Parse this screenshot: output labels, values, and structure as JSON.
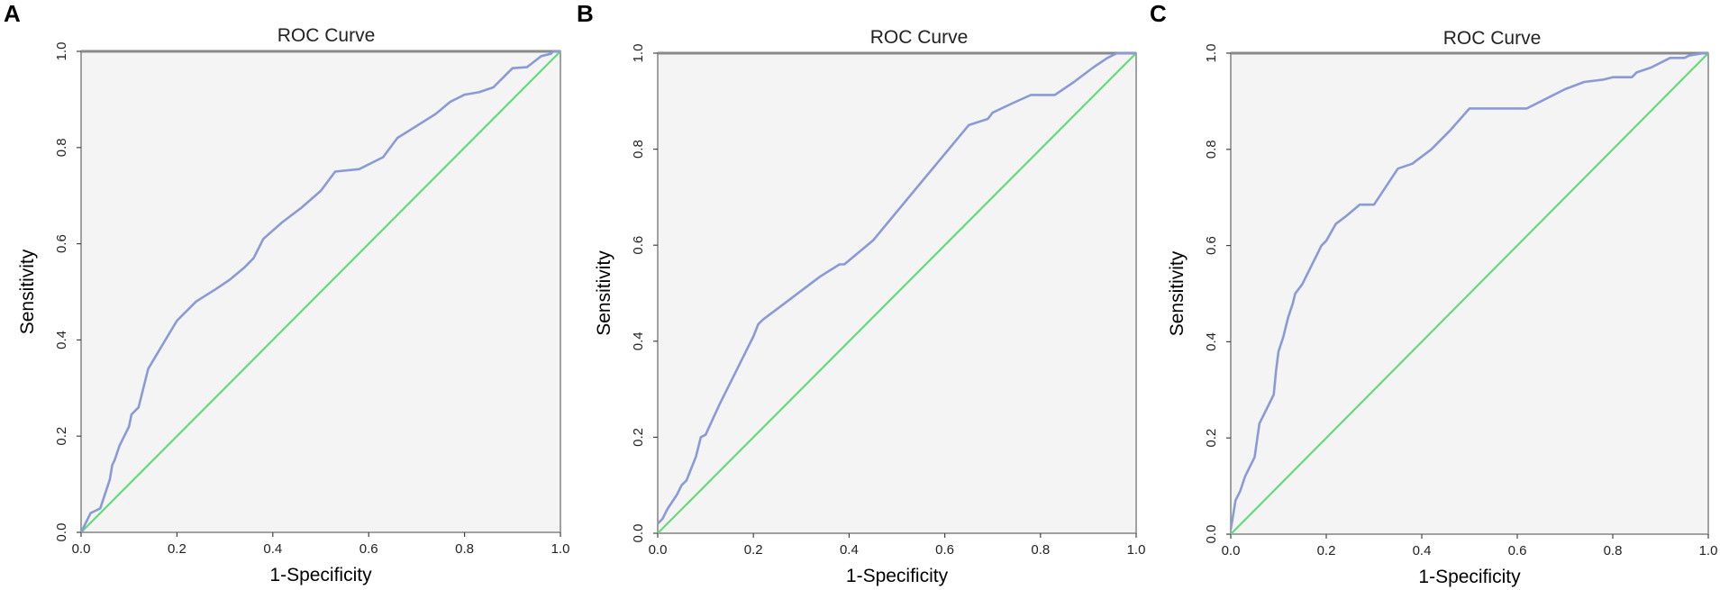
{
  "figure": {
    "colors": {
      "roc": "#8a9ad6",
      "reference": "#66d97a",
      "frame": "#8a8a8a",
      "background": "#f4f4f4"
    }
  },
  "chart_data": [
    {
      "type": "line",
      "panel": "A",
      "title": "ROC Curve",
      "xlabel": "1-Specificity",
      "ylabel": "Sensitivity",
      "xlim": [
        0,
        1
      ],
      "ylim": [
        0,
        1
      ],
      "x_ticks": [
        "0.0",
        "0.2",
        "0.4",
        "0.6",
        "0.8",
        "1.0"
      ],
      "y_ticks": [
        "0.0",
        "0.2",
        "0.4",
        "0.6",
        "0.8",
        "1.0"
      ],
      "series": [
        {
          "name": "ROC",
          "x": [
            0,
            0.01,
            0.02,
            0.03,
            0.04,
            0.05,
            0.06,
            0.065,
            0.07,
            0.08,
            0.09,
            0.1,
            0.105,
            0.12,
            0.14,
            0.17,
            0.2,
            0.24,
            0.28,
            0.31,
            0.34,
            0.36,
            0.38,
            0.42,
            0.46,
            0.5,
            0.53,
            0.58,
            0.63,
            0.66,
            0.7,
            0.74,
            0.77,
            0.8,
            0.83,
            0.86,
            0.9,
            0.93,
            0.96,
            0.98,
            0.985,
            1.0
          ],
          "y": [
            0,
            0.02,
            0.04,
            0.045,
            0.05,
            0.08,
            0.11,
            0.14,
            0.15,
            0.18,
            0.2,
            0.22,
            0.245,
            0.26,
            0.34,
            0.39,
            0.44,
            0.48,
            0.505,
            0.525,
            0.55,
            0.57,
            0.61,
            0.645,
            0.675,
            0.71,
            0.75,
            0.755,
            0.78,
            0.82,
            0.845,
            0.87,
            0.895,
            0.91,
            0.915,
            0.925,
            0.965,
            0.967,
            0.99,
            0.995,
            1.0,
            1.0
          ]
        },
        {
          "name": "Reference Line",
          "x": [
            0,
            1
          ],
          "y": [
            0,
            1
          ]
        }
      ]
    },
    {
      "type": "line",
      "panel": "B",
      "title": "ROC Curve",
      "xlabel": "1-Specificity",
      "ylabel": "Sensitivity",
      "xlim": [
        0,
        1
      ],
      "ylim": [
        0,
        1
      ],
      "x_ticks": [
        "0.0",
        "0.2",
        "0.4",
        "0.6",
        "0.8",
        "1.0"
      ],
      "y_ticks": [
        "0.0",
        "0.2",
        "0.4",
        "0.6",
        "0.8",
        "1.0"
      ],
      "series": [
        {
          "name": "ROC",
          "x": [
            0,
            0.01,
            0.02,
            0.04,
            0.05,
            0.06,
            0.08,
            0.09,
            0.1,
            0.13,
            0.16,
            0.19,
            0.2,
            0.21,
            0.22,
            0.26,
            0.3,
            0.34,
            0.38,
            0.39,
            0.45,
            0.5,
            0.55,
            0.6,
            0.65,
            0.69,
            0.7,
            0.74,
            0.78,
            0.83,
            0.87,
            0.91,
            0.94,
            0.96,
            1.0
          ],
          "y": [
            0.02,
            0.03,
            0.05,
            0.08,
            0.1,
            0.11,
            0.16,
            0.2,
            0.205,
            0.27,
            0.33,
            0.39,
            0.41,
            0.435,
            0.445,
            0.475,
            0.505,
            0.535,
            0.56,
            0.56,
            0.61,
            0.67,
            0.73,
            0.79,
            0.85,
            0.863,
            0.876,
            0.895,
            0.913,
            0.913,
            0.94,
            0.97,
            0.99,
            1.0,
            1.0
          ]
        },
        {
          "name": "Reference Line",
          "x": [
            0,
            1
          ],
          "y": [
            0,
            1
          ]
        }
      ]
    },
    {
      "type": "line",
      "panel": "C",
      "title": "ROC Curve",
      "xlabel": "1-Specificity",
      "ylabel": "Sensitivity",
      "xlim": [
        0,
        1
      ],
      "ylim": [
        0,
        1
      ],
      "x_ticks": [
        "0.0",
        "0.2",
        "0.4",
        "0.6",
        "0.8",
        "1.0"
      ],
      "y_ticks": [
        "0.0",
        "0.2",
        "0.4",
        "0.6",
        "0.8",
        "1.0"
      ],
      "series": [
        {
          "name": "ROC",
          "x": [
            0,
            0.005,
            0.01,
            0.02,
            0.03,
            0.04,
            0.05,
            0.06,
            0.07,
            0.08,
            0.09,
            0.095,
            0.1,
            0.11,
            0.12,
            0.13,
            0.135,
            0.15,
            0.16,
            0.18,
            0.19,
            0.2,
            0.22,
            0.24,
            0.27,
            0.3,
            0.31,
            0.33,
            0.35,
            0.38,
            0.42,
            0.46,
            0.5,
            0.52,
            0.56,
            0.62,
            0.66,
            0.7,
            0.74,
            0.78,
            0.8,
            0.82,
            0.84,
            0.85,
            0.88,
            0.9,
            0.92,
            0.95,
            0.96,
            0.99,
            1.0
          ],
          "y": [
            0.01,
            0.04,
            0.07,
            0.09,
            0.12,
            0.14,
            0.16,
            0.23,
            0.25,
            0.27,
            0.29,
            0.34,
            0.38,
            0.41,
            0.45,
            0.48,
            0.5,
            0.52,
            0.54,
            0.58,
            0.6,
            0.61,
            0.645,
            0.66,
            0.685,
            0.685,
            0.7,
            0.73,
            0.76,
            0.77,
            0.8,
            0.84,
            0.885,
            0.885,
            0.885,
            0.885,
            0.905,
            0.925,
            0.94,
            0.945,
            0.95,
            0.95,
            0.95,
            0.96,
            0.97,
            0.98,
            0.99,
            0.99,
            0.995,
            1.0,
            1.0
          ]
        },
        {
          "name": "Reference Line",
          "x": [
            0,
            1
          ],
          "y": [
            0,
            1
          ]
        }
      ]
    }
  ]
}
